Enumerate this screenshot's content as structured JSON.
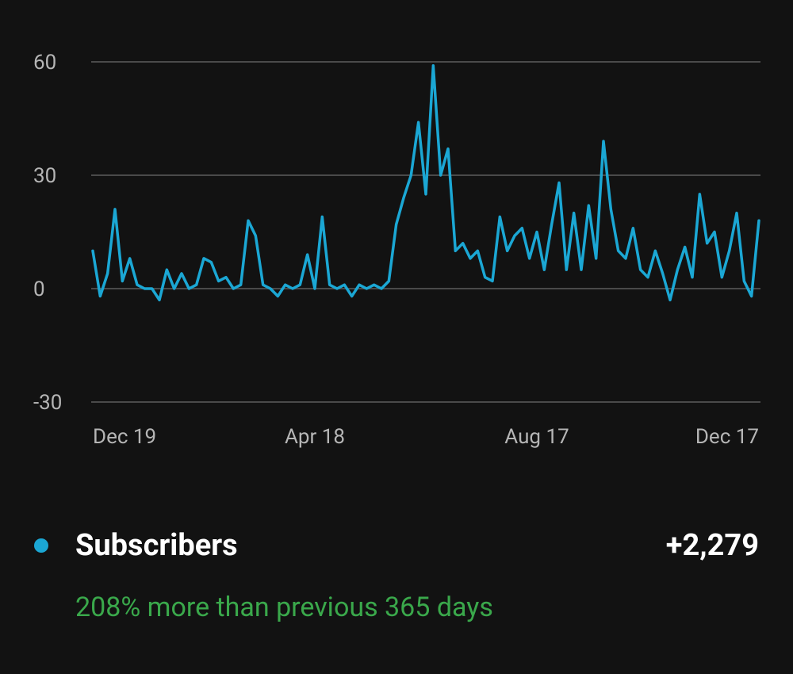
{
  "chart_data": {
    "type": "line",
    "categories": [
      "Dec 19",
      null,
      null,
      null,
      null,
      null,
      null,
      null,
      null,
      null,
      null,
      null,
      null,
      null,
      null,
      null,
      null,
      null,
      null,
      null,
      null,
      null,
      null,
      null,
      null,
      null,
      null,
      null,
      null,
      null,
      "Apr 18",
      null,
      null,
      null,
      null,
      null,
      null,
      null,
      null,
      null,
      null,
      null,
      null,
      null,
      null,
      null,
      null,
      null,
      null,
      null,
      null,
      null,
      null,
      null,
      null,
      null,
      null,
      null,
      null,
      null,
      "Aug 17",
      null,
      null,
      null,
      null,
      null,
      null,
      null,
      null,
      null,
      null,
      null,
      null,
      null,
      null,
      null,
      null,
      null,
      null,
      null,
      null,
      null,
      null,
      null,
      null,
      null,
      null,
      null,
      null,
      null,
      "Dec 17"
    ],
    "series": [
      {
        "name": "Subscribers",
        "color": "#1ba7d4",
        "values": [
          10,
          -2,
          4,
          21,
          2,
          8,
          1,
          0,
          0,
          -3,
          5,
          0,
          4,
          0,
          1,
          8,
          7,
          2,
          3,
          0,
          1,
          18,
          14,
          1,
          0,
          -2,
          1,
          0,
          1,
          9,
          0,
          19,
          1,
          0,
          1,
          -2,
          1,
          0,
          1,
          0,
          2,
          17,
          24,
          30,
          44,
          25,
          59,
          30,
          37,
          10,
          12,
          8,
          10,
          3,
          2,
          19,
          10,
          14,
          16,
          8,
          15,
          5,
          17,
          28,
          5,
          20,
          5,
          22,
          8,
          39,
          21,
          10,
          8,
          16,
          5,
          3,
          10,
          4,
          -3,
          5,
          11,
          3,
          25,
          12,
          15,
          3,
          10,
          20,
          2,
          -2,
          18
        ]
      }
    ],
    "ylim": [
      -30,
      60
    ],
    "yticks": [
      -30,
      0,
      30,
      60
    ],
    "grid": true,
    "total": "+2,279",
    "comparison": "208% more than previous 365 days"
  }
}
